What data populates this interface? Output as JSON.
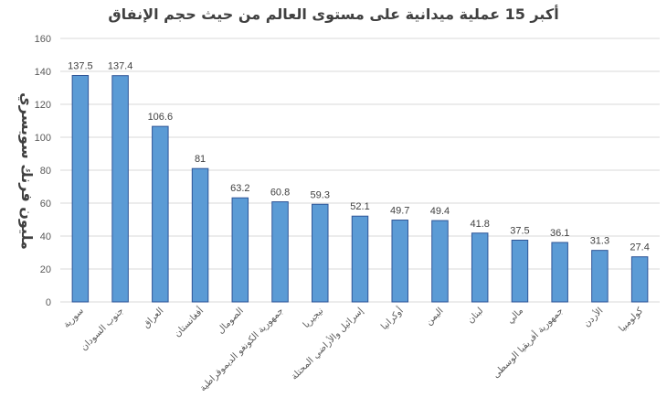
{
  "chart_data": {
    "type": "bar",
    "title": "أكبر 15 عملية ميدانية على مستوى العالم من حيث حجم الإنفاق",
    "xlabel": "",
    "ylabel": "مليون فرنك سويسري",
    "ylim": [
      0,
      160
    ],
    "yticks": [
      0,
      20,
      40,
      60,
      80,
      100,
      120,
      140,
      160
    ],
    "grid": true,
    "legend": "none",
    "categories": [
      "سورية",
      "جنوب السودان",
      "العراق",
      "أفغانستان",
      "الصومال",
      "جمهورية الكونغو الديموقراطية",
      "نيجيريا",
      "إسرائيل والأراضي المحتلة",
      "أوكرانيا",
      "اليمن",
      "لبنان",
      "مالي",
      "جمهورية أفريقيا الوسطى",
      "الأردن",
      "كولومبيا"
    ],
    "values": [
      137.5,
      137.4,
      106.6,
      81,
      63.2,
      60.8,
      59.3,
      52.1,
      49.7,
      49.4,
      41.8,
      37.5,
      36.1,
      31.3,
      27.4
    ],
    "value_labels": [
      "137.5",
      "137.4",
      "106.6",
      "81",
      "63.2",
      "60.8",
      "59.3",
      "52.1",
      "49.7",
      "49.4",
      "41.8",
      "37.5",
      "36.1",
      "31.3",
      "27.4"
    ],
    "colors": {
      "bar": "#5b9bd5",
      "bar_edge": "#2f5597",
      "grid": "#d9d9d9"
    }
  }
}
